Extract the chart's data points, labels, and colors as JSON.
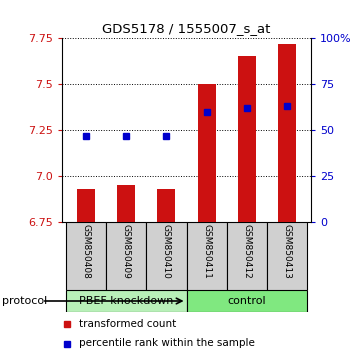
{
  "title": "GDS5178 / 1555007_s_at",
  "samples": [
    "GSM850408",
    "GSM850409",
    "GSM850410",
    "GSM850411",
    "GSM850412",
    "GSM850413"
  ],
  "red_values": [
    6.932,
    6.952,
    6.932,
    7.5,
    7.65,
    7.72
  ],
  "blue_values": [
    7.22,
    7.22,
    7.22,
    7.35,
    7.37,
    7.38
  ],
  "ymin": 6.75,
  "ymax": 7.75,
  "yticks_left": [
    6.75,
    7.0,
    7.25,
    7.5,
    7.75
  ],
  "yticks_right": [
    0,
    25,
    50,
    75,
    100
  ],
  "groups": [
    {
      "label": "PBEF knockdown",
      "indices": [
        0,
        1,
        2
      ],
      "color": "#b8f0b8"
    },
    {
      "label": "control",
      "indices": [
        3,
        4,
        5
      ],
      "color": "#80e880"
    }
  ],
  "bar_color": "#cc1111",
  "dot_color": "#0000cc",
  "sample_box_color": "#d0d0d0",
  "plot_bg": "#ffffff",
  "left_tick_color": "#cc1111",
  "right_tick_color": "#0000cc",
  "protocol_label": "protocol",
  "legend_red": "transformed count",
  "legend_blue": "percentile rank within the sample",
  "bar_width": 0.45
}
